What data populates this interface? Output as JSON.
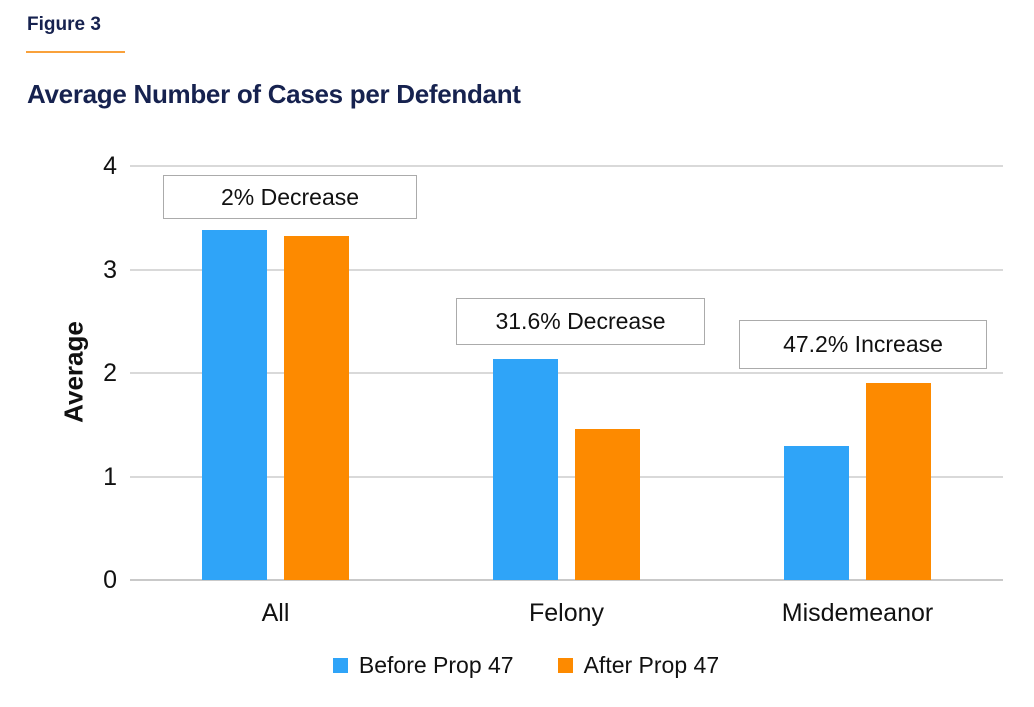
{
  "header": {
    "figure_label": "Figure 3",
    "title": "Average Number of Cases per Defendant"
  },
  "colors": {
    "heading_navy": "#16224F",
    "figure_rule_orange": "#F9A13B",
    "gridline": "#D9D9D9",
    "annotation_border": "#ABABAB",
    "before_blue": "#2FA4F8",
    "after_orange": "#FD8A00"
  },
  "chart_data": {
    "type": "bar",
    "title": "Average Number of Cases per Defendant",
    "categories": [
      "All",
      "Felony",
      "Misdemeanor"
    ],
    "series": [
      {
        "name": "Before Prop 47",
        "color": "#2FA4F8",
        "values": [
          3.38,
          2.14,
          1.29
        ]
      },
      {
        "name": "After Prop 47",
        "color": "#FD8A00",
        "values": [
          3.32,
          1.46,
          1.9
        ]
      }
    ],
    "annotations": [
      {
        "text": "2% Decrease",
        "category": "All"
      },
      {
        "text": "31.6% Decrease",
        "category": "Felony"
      },
      {
        "text": "47.2% Increase",
        "category": "Misdemeanor"
      }
    ],
    "xlabel": "",
    "ylabel": "Average",
    "ylim": [
      0,
      4
    ],
    "yticks": [
      0,
      1,
      2,
      3,
      4
    ],
    "grid": true,
    "legend_position": "bottom"
  }
}
